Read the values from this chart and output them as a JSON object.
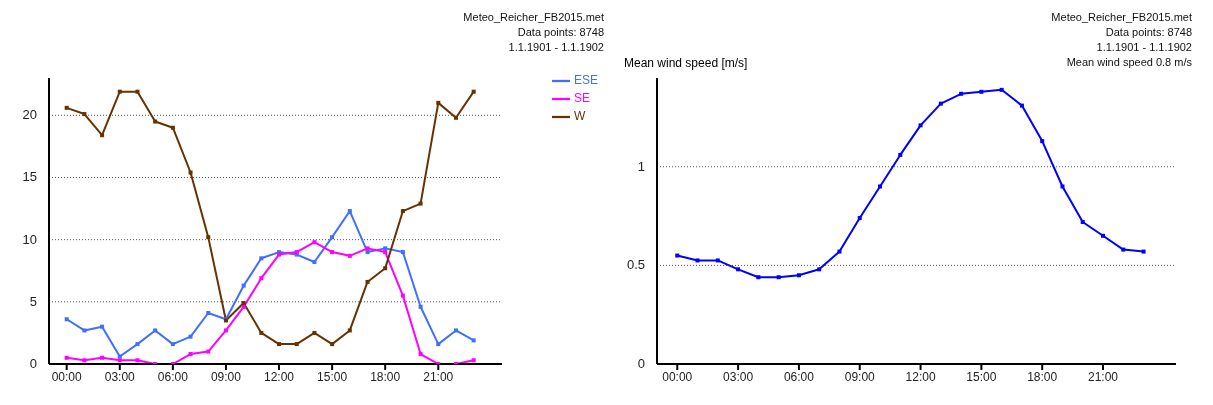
{
  "chart_data": [
    {
      "type": "line",
      "x": [
        0,
        1,
        2,
        3,
        4,
        5,
        6,
        7,
        8,
        9,
        10,
        11,
        12,
        13,
        14,
        15,
        16,
        17,
        18,
        19,
        20,
        21,
        22,
        23
      ],
      "series": [
        {
          "name": "ESE",
          "color": "#3f6fff",
          "values": [
            3.6,
            2.7,
            3.0,
            0.6,
            1.6,
            2.7,
            1.6,
            2.2,
            4.1,
            3.6,
            6.3,
            8.5,
            9.0,
            8.8,
            8.2,
            10.2,
            12.3,
            9.0,
            9.3,
            9.0,
            4.6,
            1.6,
            2.7,
            1.9
          ]
        },
        {
          "name": "SE",
          "color": "#ff00ff",
          "values": [
            0.5,
            0.3,
            0.5,
            0.3,
            0.3,
            0,
            0,
            0.8,
            1.0,
            2.7,
            4.6,
            6.9,
            8.8,
            9.0,
            9.8,
            9.0,
            8.7,
            9.3,
            9.0,
            5.5,
            0.8,
            0,
            0,
            0.3
          ]
        },
        {
          "name": "W",
          "color": "#663300",
          "values": [
            20.6,
            20.1,
            18.4,
            21.9,
            21.9,
            19.5,
            19.0,
            15.4,
            10.2,
            3.5,
            4.9,
            2.5,
            1.6,
            1.6,
            2.5,
            1.6,
            2.7,
            6.6,
            7.7,
            12.3,
            12.9,
            21.0,
            19.8,
            21.9
          ]
        }
      ],
      "xlim": [
        -1,
        24.6
      ],
      "xticks": [
        {
          "value": 0,
          "label": "00:00"
        },
        {
          "value": 3,
          "label": "03:00"
        },
        {
          "value": 6,
          "label": "06:00"
        },
        {
          "value": 9,
          "label": "09:00"
        },
        {
          "value": 12,
          "label": "12:00"
        },
        {
          "value": 15,
          "label": "15:00"
        },
        {
          "value": 18,
          "label": "18:00"
        },
        {
          "value": 21,
          "label": "21:00"
        }
      ],
      "ylim": [
        0,
        23
      ],
      "yticks": [
        0,
        5,
        10,
        15,
        20
      ],
      "annotations": [
        "Meteo_Reicher_FB2015.met",
        "Data points: 8748",
        "1.1.1901 - 1.1.1902"
      ],
      "grid": "y",
      "legend": "top right",
      "marker": "square",
      "line_style": "solid"
    },
    {
      "type": "line",
      "ylabel": "Mean wind speed [m/s]",
      "x": [
        0,
        1,
        2,
        3,
        4,
        5,
        6,
        7,
        8,
        9,
        10,
        11,
        12,
        13,
        14,
        15,
        16,
        17,
        18,
        19,
        20,
        21,
        22,
        23
      ],
      "series": [
        {
          "color": "#0000ff",
          "values": [
            0.55,
            0.525,
            0.525,
            0.48,
            0.44,
            0.44,
            0.45,
            0.48,
            0.57,
            0.74,
            0.9,
            1.06,
            1.21,
            1.32,
            1.37,
            1.38,
            1.39,
            1.31,
            1.13,
            0.9,
            0.72,
            0.65,
            0.58,
            0.57
          ]
        }
      ],
      "xlim": [
        -1,
        24.6
      ],
      "xticks": [
        {
          "value": 0,
          "label": "00:00"
        },
        {
          "value": 3,
          "label": "03:00"
        },
        {
          "value": 6,
          "label": "06:00"
        },
        {
          "value": 9,
          "label": "09:00"
        },
        {
          "value": 12,
          "label": "12:00"
        },
        {
          "value": 15,
          "label": "15:00"
        },
        {
          "value": 18,
          "label": "18:00"
        },
        {
          "value": 21,
          "label": "21:00"
        }
      ],
      "ylim": [
        0,
        1.45
      ],
      "yticks": [
        0,
        0.5,
        1
      ],
      "annotations": [
        "Meteo_Reicher_FB2015.met",
        "Data points: 8748",
        "1.1.1901 - 1.1.1902",
        "Mean wind speed 0.8 m/s"
      ],
      "grid": "y",
      "legend": false,
      "marker": "square",
      "line_style": "solid"
    }
  ]
}
